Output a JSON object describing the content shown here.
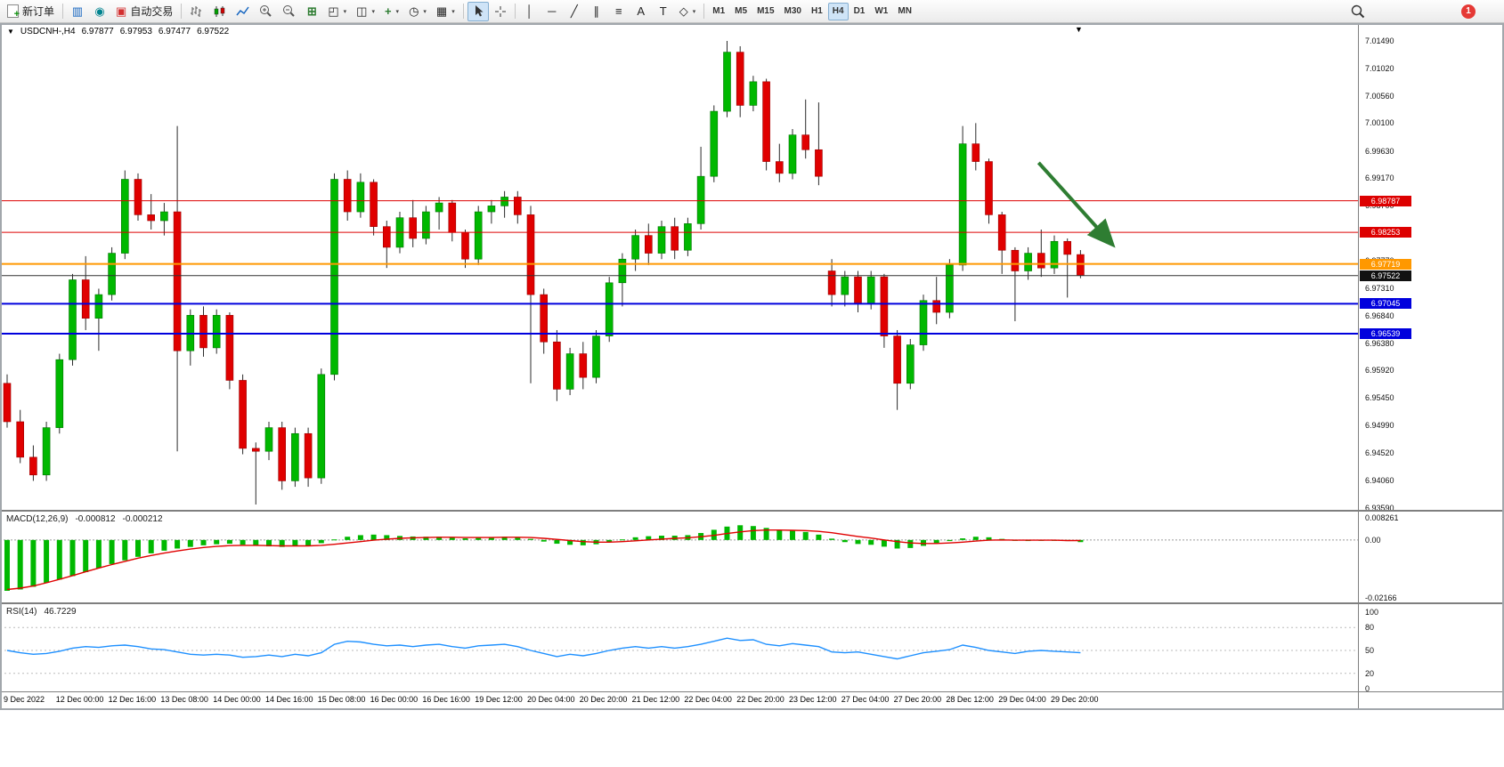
{
  "toolbar": {
    "new_order_label": "新订单",
    "autotrade_label": "自动交易",
    "timeframes": [
      {
        "label": "M1",
        "active": false
      },
      {
        "label": "M5",
        "active": false
      },
      {
        "label": "M15",
        "active": false
      },
      {
        "label": "M30",
        "active": false
      },
      {
        "label": "H1",
        "active": false
      },
      {
        "label": "H4",
        "active": true
      },
      {
        "label": "D1",
        "active": false
      },
      {
        "label": "W1",
        "active": false
      },
      {
        "label": "MN",
        "active": false
      }
    ],
    "notification_count": "1"
  },
  "icons": {
    "new_order_plus": "+",
    "market_watch": "▥",
    "data_window": "◉",
    "autotrade": "▣",
    "tile_windows": "⊞",
    "cascade": "◰",
    "arrange": "◫",
    "add_indicator": "+",
    "clock": "◷",
    "template": "▦",
    "dropdown": "▾",
    "vline": "│",
    "hline": "─",
    "trendline": "╱",
    "channel": "∥",
    "fibonacci": "≡",
    "text_tool": "A",
    "label_tool": "T",
    "shapes": "◇",
    "symbol_dropdown": "▼",
    "shift_marker": "▼"
  },
  "chart": {
    "symbol_period": "USDCNH-,H4",
    "open": "6.97877",
    "high": "6.97953",
    "low": "6.97477",
    "close": "6.97522"
  },
  "chart_data": [
    {
      "type": "candlestick",
      "title": "USDCNH- H4",
      "y_ticks": [
        "7.01490",
        "7.01020",
        "7.00560",
        "7.00100",
        "6.99630",
        "6.99170",
        "6.98700",
        "6.98230",
        "6.97770",
        "6.97310",
        "6.96840",
        "6.96380",
        "6.95920",
        "6.95450",
        "6.94990",
        "6.94520",
        "6.94060",
        "6.93590"
      ],
      "y_range": [
        6.9356,
        7.0158
      ],
      "x_labels": [
        "9 Dec 2022",
        "12 Dec 00:00",
        "12 Dec 16:00",
        "13 Dec 08:00",
        "14 Dec 00:00",
        "14 Dec 16:00",
        "15 Dec 08:00",
        "16 Dec 00:00",
        "16 Dec 16:00",
        "19 Dec 12:00",
        "20 Dec 04:00",
        "20 Dec 20:00",
        "21 Dec 12:00",
        "22 Dec 04:00",
        "22 Dec 20:00",
        "23 Dec 12:00",
        "27 Dec 04:00",
        "27 Dec 20:00",
        "28 Dec 12:00",
        "29 Dec 04:00",
        "29 Dec 20:00"
      ],
      "candles_per_label": 4,
      "colors": {
        "up": "#00b800",
        "down": "#e00000",
        "wick": "#2b2b2b"
      },
      "candles": [
        [
          6.957,
          6.9585,
          6.9495,
          6.9505
        ],
        [
          6.9505,
          6.9525,
          6.9435,
          6.9445
        ],
        [
          6.9445,
          6.9465,
          6.9405,
          6.9415
        ],
        [
          6.9415,
          6.9505,
          6.9405,
          6.9495
        ],
        [
          6.9495,
          6.962,
          6.9485,
          6.961
        ],
        [
          6.961,
          6.9755,
          6.96,
          6.9745
        ],
        [
          6.9745,
          6.9785,
          6.966,
          6.968
        ],
        [
          6.968,
          6.973,
          6.9625,
          6.972
        ],
        [
          6.972,
          6.98,
          6.971,
          6.979
        ],
        [
          6.979,
          6.993,
          6.978,
          6.9915
        ],
        [
          6.9915,
          6.9925,
          6.9845,
          6.9855
        ],
        [
          6.9855,
          6.989,
          6.983,
          6.9845
        ],
        [
          6.9845,
          6.9875,
          6.982,
          6.986
        ],
        [
          6.986,
          7.0005,
          6.9455,
          6.9625
        ],
        [
          6.9625,
          6.9695,
          6.96,
          6.9685
        ],
        [
          6.9685,
          6.97,
          6.9615,
          6.963
        ],
        [
          6.963,
          6.9695,
          6.962,
          6.9685
        ],
        [
          6.9685,
          6.969,
          6.956,
          6.9575
        ],
        [
          6.9575,
          6.9585,
          6.945,
          6.946
        ],
        [
          6.946,
          6.947,
          6.9365,
          6.9455
        ],
        [
          6.9455,
          6.9505,
          6.944,
          6.9495
        ],
        [
          6.9495,
          6.9505,
          6.939,
          6.9405
        ],
        [
          6.9405,
          6.9495,
          6.9395,
          6.9485
        ],
        [
          6.9485,
          6.9495,
          6.9395,
          6.941
        ],
        [
          6.941,
          6.9595,
          6.94,
          6.9585
        ],
        [
          6.9585,
          6.9925,
          6.9575,
          6.9915
        ],
        [
          6.9915,
          6.993,
          6.9845,
          6.986
        ],
        [
          6.986,
          6.9925,
          6.985,
          6.991
        ],
        [
          6.991,
          6.9915,
          6.982,
          6.9835
        ],
        [
          6.9835,
          6.9845,
          6.9765,
          6.98
        ],
        [
          6.98,
          6.986,
          6.979,
          6.985
        ],
        [
          6.985,
          6.988,
          6.98,
          6.9815
        ],
        [
          6.9815,
          6.987,
          6.9805,
          6.986
        ],
        [
          6.986,
          6.9885,
          6.983,
          6.9875
        ],
        [
          6.9875,
          6.988,
          6.981,
          6.9825
        ],
        [
          6.9825,
          6.983,
          6.9765,
          6.978
        ],
        [
          6.978,
          6.987,
          6.977,
          6.986
        ],
        [
          6.986,
          6.988,
          6.984,
          6.987
        ],
        [
          6.987,
          6.9895,
          6.985,
          6.9885
        ],
        [
          6.9885,
          6.9895,
          6.984,
          6.9855
        ],
        [
          6.9855,
          6.987,
          6.957,
          6.972
        ],
        [
          6.972,
          6.973,
          6.962,
          6.964
        ],
        [
          6.964,
          6.966,
          6.954,
          6.956
        ],
        [
          6.956,
          6.963,
          6.955,
          6.962
        ],
        [
          6.962,
          6.964,
          6.956,
          6.958
        ],
        [
          6.958,
          6.966,
          6.957,
          6.965
        ],
        [
          6.965,
          6.975,
          6.964,
          6.974
        ],
        [
          6.974,
          6.979,
          6.97,
          6.978
        ],
        [
          6.978,
          6.983,
          6.976,
          6.982
        ],
        [
          6.982,
          6.984,
          6.977,
          6.979
        ],
        [
          6.979,
          6.9845,
          6.978,
          6.9835
        ],
        [
          6.9835,
          6.985,
          6.978,
          6.9795
        ],
        [
          6.9795,
          6.985,
          6.9785,
          6.984
        ],
        [
          6.984,
          6.997,
          6.983,
          6.992
        ],
        [
          6.992,
          7.004,
          6.991,
          7.003
        ],
        [
          7.003,
          7.0149,
          7.002,
          7.013
        ],
        [
          7.013,
          7.014,
          7.002,
          7.004
        ],
        [
          7.004,
          7.009,
          7.003,
          7.008
        ],
        [
          7.008,
          7.0085,
          6.993,
          6.9945
        ],
        [
          6.9945,
          6.9975,
          6.991,
          6.9925
        ],
        [
          6.9925,
          7.0,
          6.9915,
          6.999
        ],
        [
          6.999,
          7.005,
          6.995,
          6.9965
        ],
        [
          6.9965,
          7.0045,
          6.9905,
          6.992
        ],
        [
          6.976,
          6.978,
          6.97,
          6.972
        ],
        [
          6.972,
          6.976,
          6.97,
          6.975
        ],
        [
          6.975,
          6.976,
          6.969,
          6.9705
        ],
        [
          6.9705,
          6.976,
          6.9695,
          6.975
        ],
        [
          6.975,
          6.9755,
          6.963,
          6.965
        ],
        [
          6.965,
          6.966,
          6.9525,
          6.957
        ],
        [
          6.957,
          6.9645,
          6.956,
          6.9635
        ],
        [
          6.9635,
          6.972,
          6.9625,
          6.971
        ],
        [
          6.971,
          6.975,
          6.967,
          6.969
        ],
        [
          6.969,
          6.978,
          6.968,
          6.977
        ],
        [
          6.977,
          7.0005,
          6.976,
          6.9975
        ],
        [
          6.9975,
          7.001,
          6.993,
          6.9945
        ],
        [
          6.9945,
          6.995,
          6.984,
          6.9855
        ],
        [
          6.9855,
          6.986,
          6.9755,
          6.9795
        ],
        [
          6.9795,
          6.98,
          6.9675,
          6.976
        ],
        [
          6.976,
          6.98,
          6.9745,
          6.979
        ],
        [
          6.979,
          6.983,
          6.975,
          6.9765
        ],
        [
          6.9765,
          6.982,
          6.9755,
          6.981
        ],
        [
          6.981,
          6.9815,
          6.9715,
          6.9788
        ],
        [
          6.97877,
          6.97953,
          6.97477,
          6.97522
        ]
      ],
      "hlines": [
        {
          "price": 6.98787,
          "label": "6.98787",
          "color": "#dd0000",
          "width": 1
        },
        {
          "price": 6.98253,
          "label": "6.98253",
          "color": "#dd0000",
          "width": 1
        },
        {
          "price": 6.97719,
          "label": "6.97719",
          "color": "#ff9800",
          "width": 2
        },
        {
          "price": 6.97045,
          "label": "6.97045",
          "color": "#0000dd",
          "width": 2
        },
        {
          "price": 6.96539,
          "label": "6.96539",
          "color": "#0000dd",
          "width": 2
        }
      ],
      "bid": {
        "price": 6.97522,
        "label": "6.97522",
        "color": "#333333",
        "tag_bg": "#111111"
      },
      "annotation_arrow": {
        "bar1": 78.8,
        "price1": 6.9943,
        "bar2": 84.3,
        "price2": 6.9808,
        "color": "#2e7d32"
      }
    },
    {
      "type": "macd",
      "name": "MACD(12,26,9)",
      "current_main": "-0.000812",
      "current_signal": "-0.000212",
      "y_ticks": [
        "0.008261",
        "0.00",
        "-0.02166"
      ],
      "y_range": [
        -0.02166,
        0.008261
      ],
      "colors": {
        "histogram": "#00b800",
        "signal": "#e00000"
      },
      "values": [
        -0.019,
        -0.0185,
        -0.0175,
        -0.016,
        -0.0148,
        -0.0135,
        -0.012,
        -0.0105,
        -0.009,
        -0.0076,
        -0.0063,
        -0.005,
        -0.004,
        -0.0032,
        -0.0026,
        -0.002,
        -0.0016,
        -0.0014,
        -0.0018,
        -0.0022,
        -0.0024,
        -0.0026,
        -0.0024,
        -0.0022,
        -0.0012,
        0.0002,
        0.0012,
        0.0018,
        0.002,
        0.0018,
        0.0015,
        0.0013,
        0.0012,
        0.0012,
        0.001,
        0.0006,
        0.0008,
        0.001,
        0.0012,
        0.001,
        0.0004,
        -0.0006,
        -0.0014,
        -0.0018,
        -0.002,
        -0.0016,
        -0.0008,
        0.0002,
        0.001,
        0.0014,
        0.0016,
        0.0016,
        0.0018,
        0.0026,
        0.0038,
        0.005,
        0.0055,
        0.0052,
        0.0045,
        0.0038,
        0.0035,
        0.003,
        0.002,
        0.0005,
        -0.0008,
        -0.0015,
        -0.0018,
        -0.0025,
        -0.0032,
        -0.003,
        -0.0022,
        -0.0012,
        -0.0004,
        0.0006,
        0.0012,
        0.001,
        0.0004,
        -0.0002,
        -0.0004,
        -0.0002,
        0.0,
        -0.0004,
        -0.0008
      ],
      "signal": [
        -0.0185,
        -0.018,
        -0.0172,
        -0.016,
        -0.0147,
        -0.0133,
        -0.0119,
        -0.0105,
        -0.0092,
        -0.008,
        -0.0068,
        -0.0058,
        -0.0049,
        -0.0041,
        -0.0034,
        -0.0028,
        -0.0024,
        -0.0021,
        -0.002,
        -0.002,
        -0.0021,
        -0.0022,
        -0.0022,
        -0.0022,
        -0.002,
        -0.0016,
        -0.0011,
        -0.0006,
        -0.0001,
        0.0003,
        0.0006,
        0.0008,
        0.0009,
        0.001,
        0.001,
        0.0009,
        0.0009,
        0.0009,
        0.001,
        0.001,
        0.0009,
        0.0006,
        0.0002,
        -0.0002,
        -0.0006,
        -0.0008,
        -0.0008,
        -0.0006,
        -0.0003,
        0.0,
        0.0003,
        0.0006,
        0.0008,
        0.0012,
        0.0017,
        0.0024,
        0.003,
        0.0035,
        0.0037,
        0.0037,
        0.0036,
        0.0035,
        0.0032,
        0.0027,
        0.002,
        0.0013,
        0.0007,
        0.0,
        -0.0006,
        -0.0011,
        -0.0013,
        -0.0013,
        -0.0011,
        -0.0008,
        -0.0004,
        -0.0001,
        0.0,
        -0.0001,
        -0.0001,
        -0.0001,
        -0.0001,
        -0.0002,
        -0.0002
      ]
    },
    {
      "type": "line",
      "name": "RSI(14)",
      "current": "46.7229",
      "y_ticks": [
        "100",
        "80",
        "50",
        "20",
        "0"
      ],
      "y_range": [
        0,
        100
      ],
      "levels": [
        80,
        50,
        20
      ],
      "colors": {
        "line": "#1e90ff"
      },
      "values": [
        50,
        47,
        45,
        46,
        49,
        53,
        55,
        54,
        56,
        57,
        55,
        52,
        51,
        48,
        45,
        44,
        45,
        44,
        41,
        42,
        44,
        42,
        45,
        43,
        47,
        58,
        62,
        61,
        58,
        56,
        57,
        55,
        57,
        58,
        55,
        53,
        56,
        57,
        58,
        55,
        50,
        46,
        42,
        45,
        43,
        46,
        50,
        53,
        55,
        53,
        55,
        53,
        55,
        58,
        62,
        66,
        63,
        64,
        58,
        56,
        59,
        57,
        55,
        48,
        47,
        48,
        45,
        42,
        39,
        43,
        47,
        49,
        51,
        57,
        54,
        50,
        48,
        46,
        49,
        50,
        49,
        48,
        47
      ]
    }
  ]
}
